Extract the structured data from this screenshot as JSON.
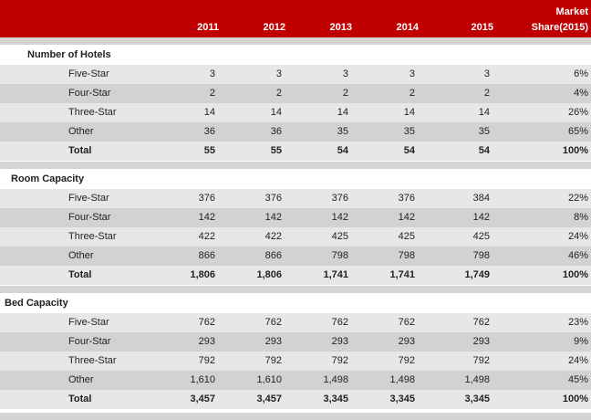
{
  "header": {
    "years": [
      "2011",
      "2012",
      "2013",
      "2014",
      "2015"
    ],
    "market_line1": "Market",
    "market_line2": "Share(2015)"
  },
  "sections": [
    {
      "title": "Number of Hotels",
      "rows": [
        {
          "label": "Five-Star",
          "values": [
            "3",
            "3",
            "3",
            "3",
            "3",
            "6%"
          ]
        },
        {
          "label": "Four-Star",
          "values": [
            "2",
            "2",
            "2",
            "2",
            "2",
            "4%"
          ]
        },
        {
          "label": "Three-Star",
          "values": [
            "14",
            "14",
            "14",
            "14",
            "14",
            "26%"
          ]
        },
        {
          "label": "Other",
          "values": [
            "36",
            "36",
            "35",
            "35",
            "35",
            "65%"
          ]
        },
        {
          "label": "Total",
          "values": [
            "55",
            "55",
            "54",
            "54",
            "54",
            "100%"
          ]
        }
      ]
    },
    {
      "title": "Room Capacity",
      "rows": [
        {
          "label": "Five-Star",
          "values": [
            "376",
            "376",
            "376",
            "376",
            "384",
            "22%"
          ]
        },
        {
          "label": "Four-Star",
          "values": [
            "142",
            "142",
            "142",
            "142",
            "142",
            "8%"
          ]
        },
        {
          "label": "Three-Star",
          "values": [
            "422",
            "422",
            "425",
            "425",
            "425",
            "24%"
          ]
        },
        {
          "label": "Other",
          "values": [
            "866",
            "866",
            "798",
            "798",
            "798",
            "46%"
          ]
        },
        {
          "label": "Total",
          "values": [
            "1,806",
            "1,806",
            "1,741",
            "1,741",
            "1,749",
            "100%"
          ]
        }
      ]
    },
    {
      "title": "Bed Capacity",
      "rows": [
        {
          "label": "Five-Star",
          "values": [
            "762",
            "762",
            "762",
            "762",
            "762",
            "23%"
          ]
        },
        {
          "label": "Four-Star",
          "values": [
            "293",
            "293",
            "293",
            "293",
            "293",
            "9%"
          ]
        },
        {
          "label": "Three-Star",
          "values": [
            "792",
            "792",
            "792",
            "792",
            "792",
            "24%"
          ]
        },
        {
          "label": "Other",
          "values": [
            "1,610",
            "1,610",
            "1,498",
            "1,498",
            "1,498",
            "45%"
          ]
        },
        {
          "label": "Total",
          "values": [
            "3,457",
            "3,457",
            "3,345",
            "3,345",
            "3,345",
            "100%"
          ]
        }
      ]
    }
  ]
}
